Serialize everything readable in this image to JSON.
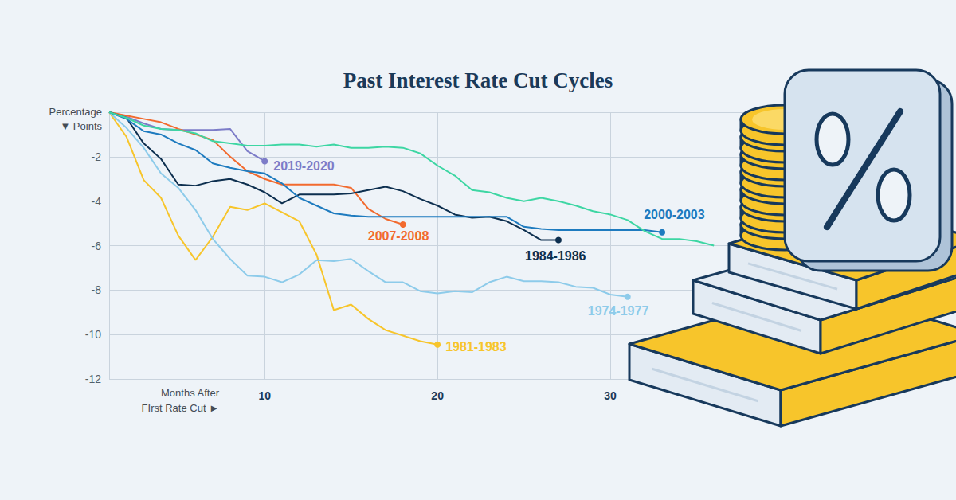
{
  "chart_data": {
    "type": "line",
    "title": "Past Interest Rate Cut Cycles",
    "x_label": "Months After\nFIrst Rate Cut ►",
    "y_label": "Percentage\n▼ Points",
    "x": [
      1,
      2,
      3,
      4,
      5,
      6,
      7,
      8,
      9,
      10,
      11,
      12,
      13,
      14,
      15,
      16,
      17,
      18,
      19,
      20,
      21,
      22,
      23,
      24,
      25,
      26,
      27,
      28,
      29,
      30,
      31,
      32,
      33,
      34,
      35,
      36
    ],
    "xlim": [
      1,
      40
    ],
    "xticks": [
      10,
      20,
      30
    ],
    "ylim": [
      -12,
      0
    ],
    "yticks": [
      -12,
      -10,
      -8,
      -6,
      -4,
      -2
    ],
    "grid": true,
    "series": [
      {
        "name": "2019-2020",
        "color": "#7c7cc8",
        "marker": "end-dot",
        "values": [
          0,
          -0.2,
          -0.5,
          -0.75,
          -0.8,
          -0.8,
          -0.8,
          -0.75,
          -1.75,
          -2.2,
          null,
          null,
          null,
          null,
          null,
          null,
          null,
          null,
          null,
          null,
          null,
          null,
          null,
          null,
          null,
          null,
          null,
          null,
          null,
          null,
          null,
          null,
          null,
          null,
          null,
          null
        ]
      },
      {
        "name": "2007-2008",
        "color": "#f26a2e",
        "marker": "end-dot",
        "values": [
          0,
          -0.15,
          -0.3,
          -0.45,
          -0.75,
          -1.0,
          -1.25,
          -2.0,
          -2.65,
          -3.0,
          -3.25,
          -3.25,
          -3.25,
          -3.25,
          -3.4,
          -4.35,
          -4.8,
          -5.05,
          null,
          null,
          null,
          null,
          null,
          null,
          null,
          null,
          null,
          null,
          null,
          null,
          null,
          null,
          null,
          null,
          null,
          null
        ]
      },
      {
        "name": "1984-1986",
        "color": "#0d2f4f",
        "marker": "end-dot",
        "values": [
          0,
          -0.25,
          -1.4,
          -2.1,
          -3.25,
          -3.3,
          -3.1,
          -3.0,
          -3.25,
          -3.6,
          -4.1,
          -3.7,
          -3.7,
          -3.7,
          -3.65,
          -3.5,
          -3.35,
          -3.55,
          -3.9,
          -4.2,
          -4.6,
          -4.75,
          -4.7,
          -4.9,
          -5.3,
          -5.75,
          -5.75,
          null,
          null,
          null,
          null,
          null,
          null,
          null,
          null,
          null
        ]
      },
      {
        "name": "1981-1983",
        "color": "#f7c52b",
        "marker": "end-dot",
        "values": [
          0,
          -1.1,
          -3.05,
          -3.85,
          -5.55,
          -6.65,
          -5.6,
          -4.25,
          -4.4,
          -4.1,
          -4.5,
          -4.9,
          -6.4,
          -8.9,
          -8.65,
          -9.3,
          -9.8,
          -10.05,
          -10.3,
          -10.45,
          null,
          null,
          null,
          null,
          null,
          null,
          null,
          null,
          null,
          null,
          null,
          null,
          null,
          null,
          null,
          null
        ]
      },
      {
        "name": "1974-1977",
        "color": "#8dcbea",
        "marker": "end-dot",
        "values": [
          0,
          -0.7,
          -1.6,
          -2.75,
          -3.4,
          -4.4,
          -5.7,
          -6.6,
          -7.35,
          -7.4,
          -7.65,
          -7.3,
          -6.65,
          -6.7,
          -6.6,
          -7.15,
          -7.65,
          -7.65,
          -8.05,
          -8.15,
          -8.05,
          -8.1,
          -7.65,
          -7.4,
          -7.6,
          -7.6,
          -7.65,
          -7.85,
          -7.9,
          -8.2,
          -8.3,
          null,
          null,
          null,
          null,
          null
        ]
      },
      {
        "name": "2000-2003",
        "color": "#1e7bbf",
        "marker": "end-dot",
        "values": [
          0,
          -0.3,
          -0.85,
          -1.0,
          -1.4,
          -1.7,
          -2.3,
          -2.5,
          -2.65,
          -2.75,
          -3.2,
          -3.85,
          -4.2,
          -4.55,
          -4.65,
          -4.7,
          -4.7,
          -4.7,
          -4.7,
          -4.7,
          -4.7,
          -4.7,
          -4.7,
          -4.7,
          -5.15,
          -5.25,
          -5.3,
          -5.3,
          -5.3,
          -5.3,
          -5.3,
          -5.3,
          -5.4,
          null,
          null,
          null
        ]
      },
      {
        "color": "#3dd6a3",
        "marker": "none",
        "values": [
          0,
          -0.25,
          -0.6,
          -0.75,
          -0.8,
          -0.95,
          -1.3,
          -1.4,
          -1.5,
          -1.5,
          -1.45,
          -1.45,
          -1.55,
          -1.45,
          -1.6,
          -1.6,
          -1.55,
          -1.6,
          -1.85,
          -2.4,
          -2.85,
          -3.5,
          -3.6,
          -3.85,
          -4.0,
          -3.85,
          -4.0,
          -4.2,
          -4.45,
          -4.6,
          -4.85,
          -5.35,
          -5.7,
          -5.7,
          -5.8,
          -6.0
        ]
      }
    ]
  }
}
